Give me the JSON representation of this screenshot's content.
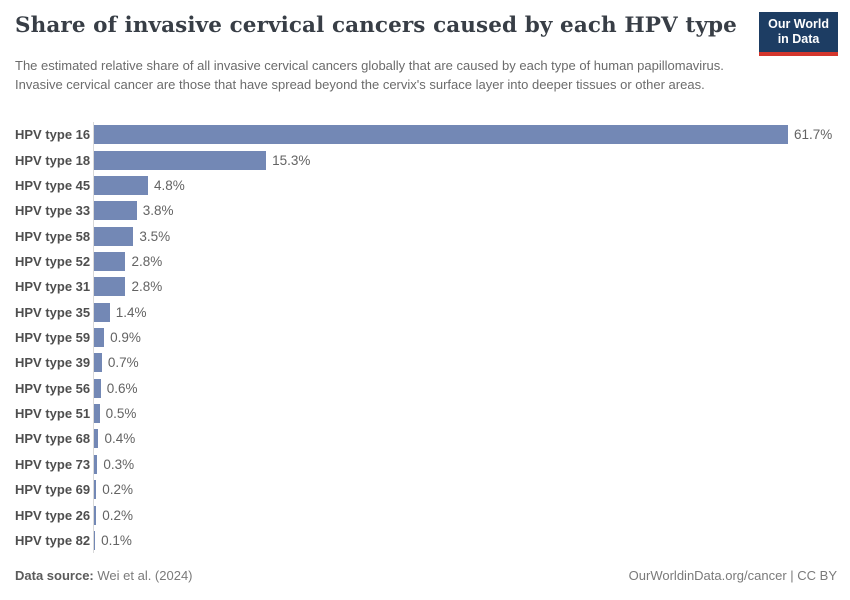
{
  "header": {
    "title": "Share of invasive cervical cancers caused by each HPV type",
    "subtitle": "The estimated relative share of all invasive cervical cancers globally that are caused by each type of human papillomavirus. Invasive cervical cancer are those that have spread beyond the cervix's surface layer into deeper tissues or other areas.",
    "logo_line1": "Our World",
    "logo_line2": "in Data",
    "logo_bg_color": "#1d3d63",
    "logo_accent_color": "#d4362d"
  },
  "chart_data": {
    "type": "bar",
    "orientation": "horizontal",
    "title": "Share of invasive cervical cancers caused by each HPV type",
    "categories": [
      "HPV type 16",
      "HPV type 18",
      "HPV type 45",
      "HPV type 33",
      "HPV type 58",
      "HPV type 52",
      "HPV type 31",
      "HPV type 35",
      "HPV type 59",
      "HPV type 39",
      "HPV type 56",
      "HPV type 51",
      "HPV type 68",
      "HPV type 73",
      "HPV type 69",
      "HPV type 26",
      "HPV type 82"
    ],
    "values": [
      61.7,
      15.3,
      4.8,
      3.8,
      3.5,
      2.8,
      2.8,
      1.4,
      0.9,
      0.7,
      0.6,
      0.5,
      0.4,
      0.3,
      0.2,
      0.2,
      0.1
    ],
    "value_labels": [
      "61.7%",
      "15.3%",
      "4.8%",
      "3.8%",
      "3.5%",
      "2.8%",
      "2.8%",
      "1.4%",
      "0.9%",
      "0.7%",
      "0.6%",
      "0.5%",
      "0.4%",
      "0.3%",
      "0.2%",
      "0.2%",
      "0.1%"
    ],
    "xlabel": "",
    "ylabel": "",
    "xlim": [
      0,
      61.7
    ],
    "bar_color": "#7388b5",
    "grid": false,
    "legend": false
  },
  "footer": {
    "datasource_label": "Data source:",
    "datasource_value": "Wei et al. (2024)",
    "attribution": "OurWorldinData.org/cancer | CC BY"
  }
}
